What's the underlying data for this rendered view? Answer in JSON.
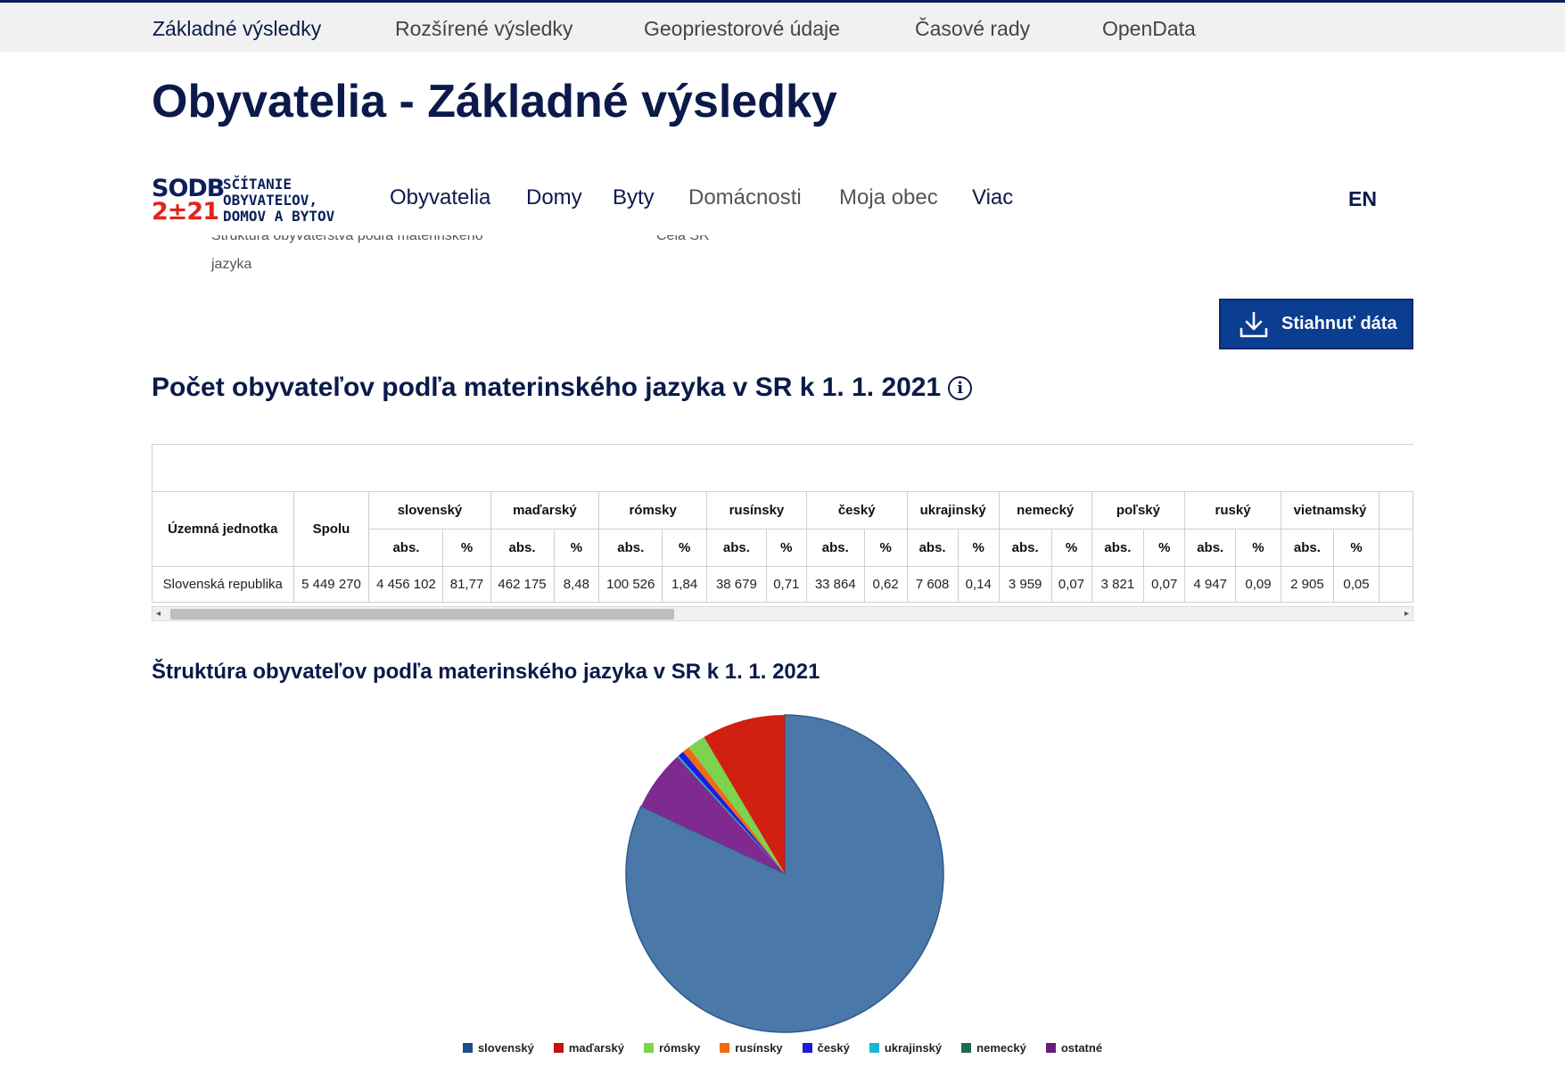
{
  "top_tabs": [
    {
      "label": "Základné výsledky",
      "active": true
    },
    {
      "label": "Rozšírené výsledky"
    },
    {
      "label": "Geopriestorové údaje"
    },
    {
      "label": "Časové rady"
    },
    {
      "label": "OpenData"
    }
  ],
  "page_title": "Obyvatelia - Základné výsledky",
  "logo": {
    "mark_top": "SODB",
    "mark_bottom": "2±21",
    "text": "SČÍTANIE\nOBYVATEĽOV,\nDOMOV A BYTOV"
  },
  "main_nav": [
    "Obyvatelia",
    "Domy",
    "Byty",
    "Domácnosti",
    "Moja obec",
    "Viac"
  ],
  "lang": "EN",
  "breadcrumb": {
    "left_line1": "Štruktúra obyvateľstva podľa materinského",
    "left_line2": "jazyka",
    "right": "Celá SR"
  },
  "download_button": "Stiahnuť dáta",
  "table_title": "Počet obyvateľov podľa materinského jazyka v SR k 1. 1. 2021",
  "table": {
    "col_unit": "Územná jednotka",
    "col_total": "Spolu",
    "sub_abs": "abs.",
    "sub_pct": "%",
    "languages": [
      "slovenský",
      "maďarský",
      "rómsky",
      "rusínsky",
      "český",
      "ukrajinský",
      "nemecký",
      "poľský",
      "ruský",
      "vietnamský"
    ],
    "rows": [
      {
        "unit": "Slovenská republika",
        "total": "5 449 270",
        "values": [
          [
            "4 456 102",
            "81,77"
          ],
          [
            "462 175",
            "8,48"
          ],
          [
            "100 526",
            "1,84"
          ],
          [
            "38 679",
            "0,71"
          ],
          [
            "33 864",
            "0,62"
          ],
          [
            "7 608",
            "0,14"
          ],
          [
            "3 959",
            "0,07"
          ],
          [
            "3 821",
            "0,07"
          ],
          [
            "4 947",
            "0,09"
          ],
          [
            "2 905",
            "0,05"
          ]
        ]
      }
    ]
  },
  "chart_title": "Štruktúra obyvateľov podľa materinského jazyka v SR k 1. 1. 2021",
  "chart_data": {
    "type": "pie",
    "title": "Štruktúra obyvateľov podľa materinského jazyka v SR k 1. 1. 2021",
    "legend_position": "bottom",
    "slices": [
      {
        "name": "slovenský",
        "value": 81.77,
        "color": "#4a78a8"
      },
      {
        "name": "ostatné",
        "value": 6.12,
        "color": "#7e2a8e"
      },
      {
        "name": "nemecký",
        "value": 0.07,
        "color": "#1d6b50"
      },
      {
        "name": "ukrajinský",
        "value": 0.14,
        "color": "#19b6d2"
      },
      {
        "name": "český",
        "value": 0.62,
        "color": "#1c1ce0"
      },
      {
        "name": "rusínsky",
        "value": 0.71,
        "color": "#ef6a14"
      },
      {
        "name": "rómsky",
        "value": 1.84,
        "color": "#7dd24e"
      },
      {
        "name": "maďarský",
        "value": 8.48,
        "color": "#d11f11"
      }
    ],
    "legend": [
      {
        "name": "slovenský",
        "color": "#1f4e8c"
      },
      {
        "name": "maďarský",
        "color": "#c0140c"
      },
      {
        "name": "rómsky",
        "color": "#7dd24e"
      },
      {
        "name": "rusínsky",
        "color": "#ef6a14"
      },
      {
        "name": "český",
        "color": "#1c1ce0"
      },
      {
        "name": "ukrajinský",
        "color": "#19b6d2"
      },
      {
        "name": "nemecký",
        "color": "#1d6b50"
      },
      {
        "name": "ostatné",
        "color": "#6a1b7e"
      }
    ]
  }
}
